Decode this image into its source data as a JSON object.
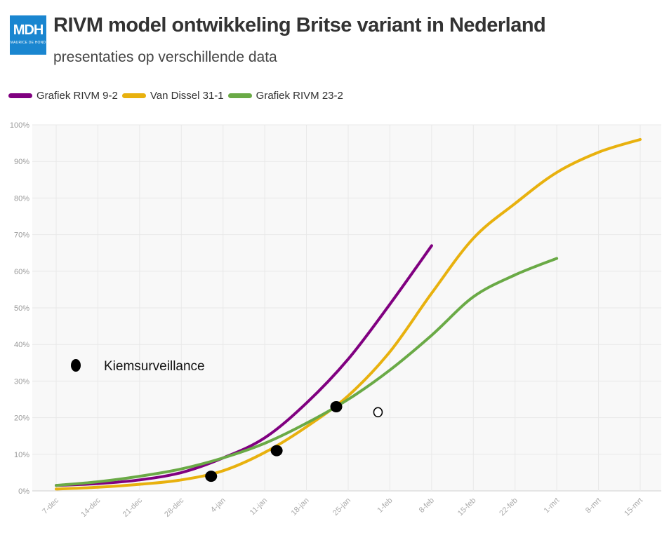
{
  "logo": {
    "mark": "MDH",
    "sub": "MAURICE DE HOND"
  },
  "colors": {
    "purple": "#800080",
    "yellow": "#e8b10e",
    "green": "#6aaa46",
    "plot_bg": "#f8f8f8",
    "grid": "#e8e8e8"
  },
  "chart_data": {
    "type": "line",
    "title": "RIVM model ontwikkeling Britse variant in Nederland",
    "subtitle": "presentaties op verschillende data",
    "xlabel": "",
    "ylabel": "",
    "x_ticks": [
      "7-dec",
      "14-dec",
      "21-dec",
      "28-dec",
      "4-jan",
      "11-jan",
      "18-jan",
      "25-jan",
      "1-feb",
      "8-feb",
      "15-feb",
      "22-feb",
      "1-mrt",
      "8-mrt",
      "15-mrt"
    ],
    "x_unit": "days since 7-dec",
    "xlim": [
      0,
      98
    ],
    "y_ticks": [
      "0%",
      "10%",
      "20%",
      "30%",
      "40%",
      "50%",
      "60%",
      "70%",
      "80%",
      "90%",
      "100%"
    ],
    "ylim": [
      0,
      100
    ],
    "grid": true,
    "legend_position": "top-left",
    "series": [
      {
        "name": "Grafiek RIVM 9-2",
        "color": "#800080",
        "points": [
          [
            0,
            1.5
          ],
          [
            7,
            2
          ],
          [
            14,
            3
          ],
          [
            21,
            5
          ],
          [
            28,
            9
          ],
          [
            35,
            14.5
          ],
          [
            42,
            24
          ],
          [
            49,
            36
          ],
          [
            56,
            51
          ],
          [
            63,
            67
          ]
        ]
      },
      {
        "name": "Van Dissel 31-1",
        "color": "#e8b10e",
        "points": [
          [
            0,
            0.5
          ],
          [
            7,
            1
          ],
          [
            14,
            1.8
          ],
          [
            21,
            3
          ],
          [
            28,
            5.5
          ],
          [
            35,
            10.5
          ],
          [
            42,
            17.5
          ],
          [
            49,
            26
          ],
          [
            56,
            38
          ],
          [
            63,
            54
          ],
          [
            70,
            69
          ],
          [
            77,
            78.5
          ],
          [
            84,
            87
          ],
          [
            91,
            92.5
          ],
          [
            98,
            96
          ]
        ]
      },
      {
        "name": "Grafiek RIVM 23-2",
        "color": "#6aaa46",
        "points": [
          [
            0,
            1.5
          ],
          [
            7,
            2.5
          ],
          [
            14,
            4
          ],
          [
            21,
            6
          ],
          [
            28,
            9
          ],
          [
            35,
            13
          ],
          [
            42,
            18.5
          ],
          [
            49,
            25
          ],
          [
            56,
            33
          ],
          [
            63,
            42.5
          ],
          [
            70,
            53
          ],
          [
            77,
            59
          ],
          [
            84,
            63.5
          ]
        ]
      }
    ],
    "markers": [
      {
        "label": "Kiemsurveillance",
        "filled": true,
        "points": [
          [
            26,
            4
          ],
          [
            37,
            11
          ],
          [
            47,
            23
          ]
        ]
      },
      {
        "filled": false,
        "points": [
          [
            54,
            21.5
          ]
        ]
      }
    ],
    "annotations": [
      {
        "text": "Kiemsurveillance"
      }
    ]
  }
}
